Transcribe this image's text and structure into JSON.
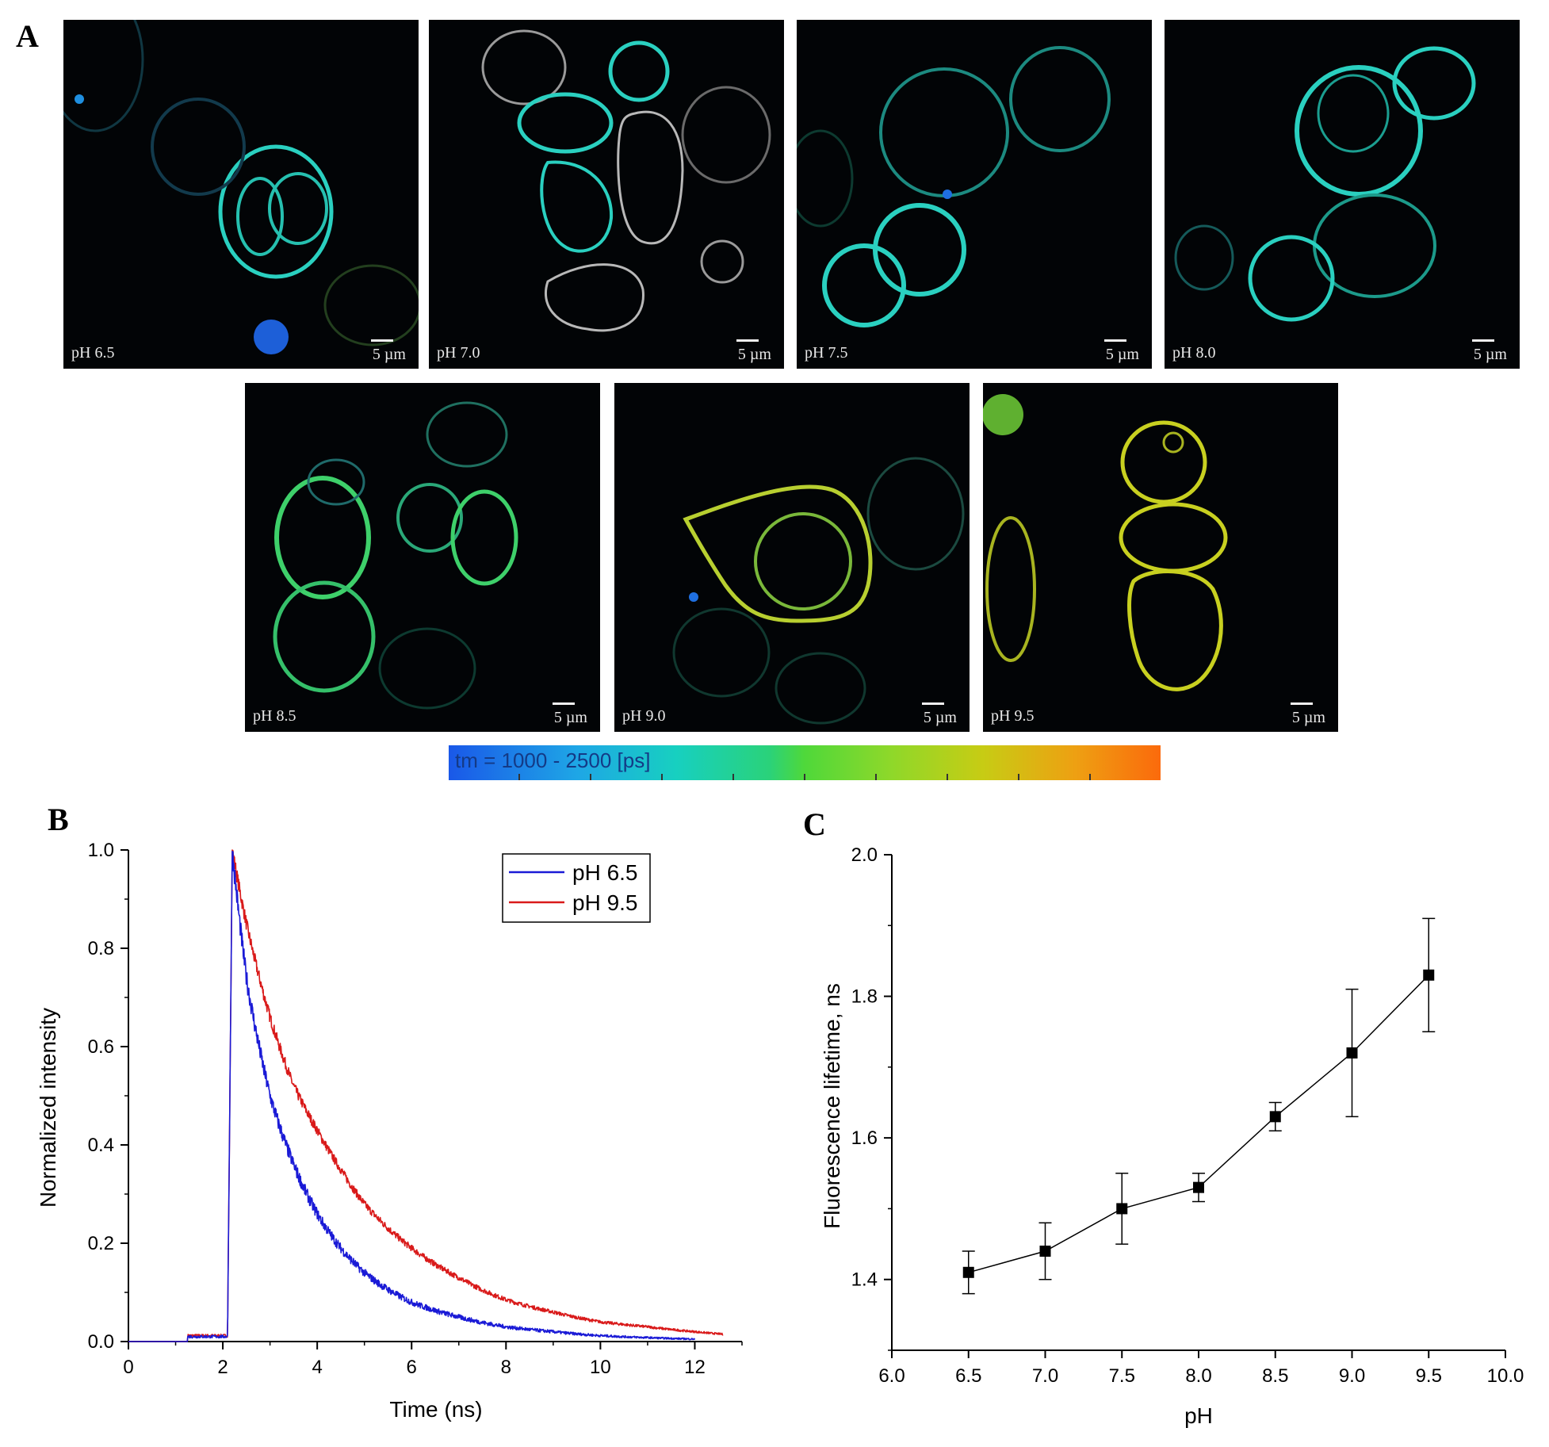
{
  "panels": {
    "a": "A",
    "b": "B",
    "c": "C"
  },
  "micrographs": [
    {
      "ph": "pH 6.5",
      "scale": "5 µm"
    },
    {
      "ph": "pH 7.0",
      "scale": "5 µm"
    },
    {
      "ph": "pH 7.5",
      "scale": "5 µm"
    },
    {
      "ph": "pH 8.0",
      "scale": "5 µm"
    },
    {
      "ph": "pH 8.5",
      "scale": "5 µm"
    },
    {
      "ph": "pH 9.0",
      "scale": "5 µm"
    },
    {
      "ph": "pH 9.5",
      "scale": "5 µm"
    }
  ],
  "colorbar": {
    "label": "tm = 1000 - 2500 [ps]"
  },
  "colors": {
    "ph65": "#1a1ad6",
    "ph95": "#d91a1a",
    "marker": "#000000",
    "membrane_cyan": "#2ad0c0",
    "membrane_green": "#44d86a",
    "membrane_yellow": "#c8d020",
    "membrane_gray": "#b8b8b8"
  },
  "chart_data": [
    {
      "type": "line",
      "title": "",
      "xlabel": "Time (ns)",
      "ylabel": "Normalized intensity",
      "xlim": [
        0,
        13
      ],
      "ylim": [
        0,
        1.0
      ],
      "xticks": [
        0,
        2,
        4,
        6,
        8,
        10,
        12
      ],
      "xtick_labels": [
        "0",
        "2",
        "4",
        "6",
        "8",
        "10",
        "12"
      ],
      "yticks": [
        0,
        0.2,
        0.4,
        0.6,
        0.8,
        1.0
      ],
      "ytick_labels": [
        "0.0",
        "0.2",
        "0.4",
        "0.6",
        "0.8",
        "1.0"
      ],
      "legend": "top-right",
      "series": [
        {
          "name": "pH 6.5",
          "color": "#1a1ad6",
          "onset_ns": 2.1,
          "peak_ns": 2.2,
          "peak": 1.0,
          "tail_end_ns": 12,
          "pre_level": 0.01,
          "decay": [
            [
              2.2,
              1.0
            ],
            [
              2.5,
              0.74
            ],
            [
              3,
              0.5
            ],
            [
              3.5,
              0.36
            ],
            [
              4,
              0.26
            ],
            [
              4.5,
              0.19
            ],
            [
              5,
              0.14
            ],
            [
              6,
              0.08
            ],
            [
              7,
              0.05
            ],
            [
              8,
              0.03
            ],
            [
              9,
              0.02
            ],
            [
              10,
              0.012
            ],
            [
              11,
              0.008
            ],
            [
              12,
              0.005
            ]
          ]
        },
        {
          "name": "pH 9.5",
          "color": "#d91a1a",
          "onset_ns": 2.1,
          "peak_ns": 2.2,
          "peak": 1.0,
          "tail_end_ns": 12.6,
          "pre_level": 0.012,
          "decay": [
            [
              2.2,
              1.0
            ],
            [
              2.5,
              0.85
            ],
            [
              3,
              0.66
            ],
            [
              3.5,
              0.52
            ],
            [
              4,
              0.43
            ],
            [
              4.5,
              0.35
            ],
            [
              5,
              0.28
            ],
            [
              6,
              0.19
            ],
            [
              7,
              0.13
            ],
            [
              8,
              0.085
            ],
            [
              9,
              0.06
            ],
            [
              10,
              0.04
            ],
            [
              11,
              0.03
            ],
            [
              12,
              0.02
            ],
            [
              12.6,
              0.015
            ]
          ]
        }
      ]
    },
    {
      "type": "line",
      "title": "",
      "xlabel": "pH",
      "ylabel": "Fluorescence lifetime, ns",
      "xlim": [
        6.0,
        10.0
      ],
      "ylim": [
        1.3,
        2.0
      ],
      "xticks": [
        6.0,
        6.5,
        7.0,
        7.5,
        8.0,
        8.5,
        9.0,
        9.5,
        10.0
      ],
      "xtick_labels": [
        "6.0",
        "6.5",
        "7.0",
        "7.5",
        "8.0",
        "8.5",
        "9.0",
        "9.5",
        "10.0"
      ],
      "yticks": [
        1.4,
        1.6,
        1.8,
        2.0
      ],
      "ytick_labels": [
        "1.4",
        "1.6",
        "1.8",
        "2.0"
      ],
      "series": [
        {
          "name": "lifetime",
          "x": [
            6.5,
            7.0,
            7.5,
            8.0,
            8.5,
            9.0,
            9.5
          ],
          "y": [
            1.41,
            1.44,
            1.5,
            1.53,
            1.63,
            1.72,
            1.83
          ],
          "err": [
            0.03,
            0.04,
            0.05,
            0.02,
            0.02,
            0.09,
            0.08
          ]
        }
      ]
    }
  ]
}
